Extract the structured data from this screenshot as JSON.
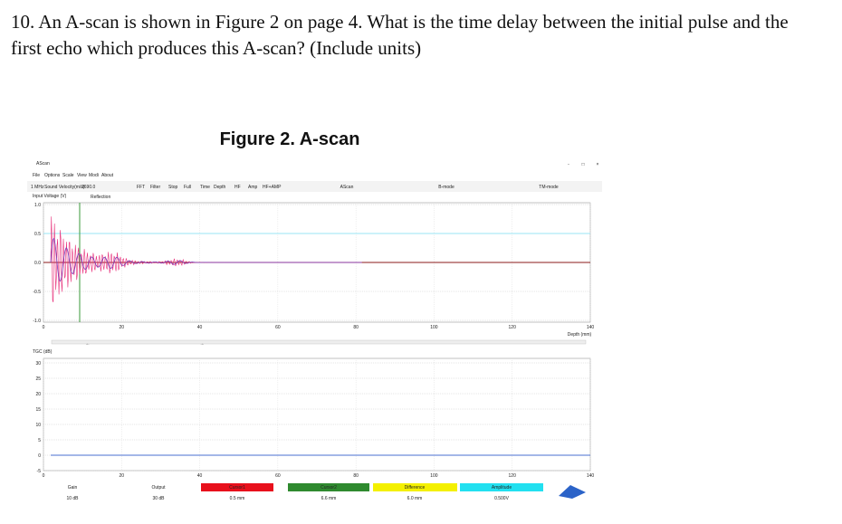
{
  "question": {
    "lines": [
      "10. An A-scan is shown in Figure 2 on page 4. What is the time delay between the initial pulse and the",
      "first echo which produces this A-scan? (Include units)"
    ]
  },
  "figure": {
    "title": "Figure 2. A-scan"
  },
  "app": {
    "window_title": "AScan",
    "window_controls": [
      "-",
      "□",
      "×"
    ],
    "menu": [
      "File",
      "Options",
      "Scale",
      "View",
      "Modi",
      "About"
    ],
    "toolbar": [
      "1 MHz",
      "Sound Velocity(m/s)",
      "2690.0",
      "FFT",
      "Filter",
      "Stop",
      "Full",
      "Time",
      "Depth",
      "HF",
      "Amp",
      "HF+AMP"
    ],
    "tabs": [
      "AScan",
      "B-mode",
      "TM-mode"
    ],
    "upper_plot": {
      "y_label": "Input Voltage (V)",
      "annotation": "Reflection",
      "y_ticks": [
        "1.0",
        "0.5",
        "0.0",
        "-0.5",
        "-1.0"
      ],
      "x_ticks": [
        0,
        20,
        40,
        60,
        80,
        100,
        120,
        140
      ],
      "x_label": "Depth (mm)"
    },
    "slider": {
      "left_arrow": "←",
      "right_arrow": "→"
    },
    "lower_plot": {
      "y_label": "TGC (dB)",
      "y_ticks": [
        30,
        25,
        20,
        15,
        10,
        5,
        0,
        -5
      ],
      "x_ticks": [
        0,
        20,
        40,
        60,
        80,
        100,
        120,
        140
      ]
    },
    "readouts": [
      {
        "label": "Gain",
        "value": "10 dB"
      },
      {
        "label": "Output",
        "value": "30 dB"
      },
      {
        "label": "Cursor1",
        "value": "0.5 mm"
      },
      {
        "label": "Cursor2",
        "value": "6.6 mm"
      },
      {
        "label": "Difference",
        "value": "6.0 mm"
      },
      {
        "label": "Amplitude",
        "value": "0.500V"
      }
    ]
  }
}
